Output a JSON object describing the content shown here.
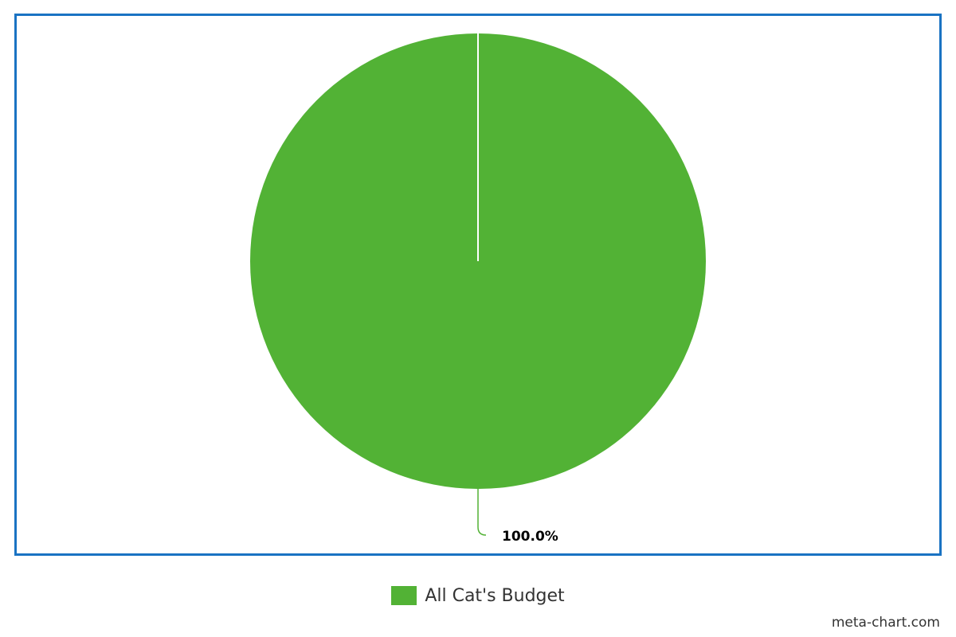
{
  "chart_data": {
    "type": "pie",
    "title": "",
    "slices": [
      {
        "label": "All Cat's Budget",
        "value": 100.0,
        "percent_label": "100.0%",
        "color": "#52b235"
      }
    ],
    "legend_position": "bottom-center",
    "grid": false
  },
  "legend": {
    "items": [
      {
        "label": "All Cat's Budget",
        "color": "#52b235"
      }
    ]
  },
  "watermark": "meta-chart.com",
  "colors": {
    "frame": "#1a73c3",
    "slice": "#52b235",
    "label_text": "#000000"
  }
}
